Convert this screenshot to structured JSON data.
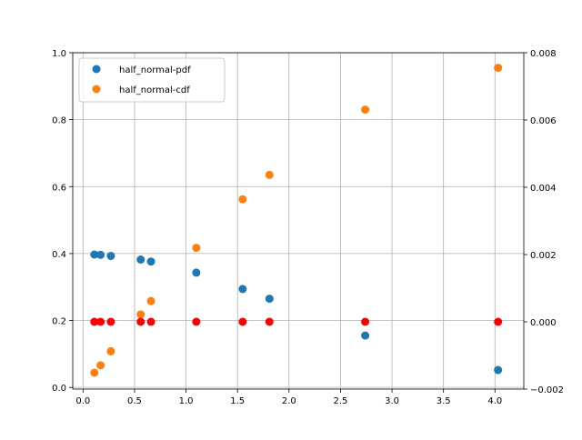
{
  "chart_data": {
    "type": "scatter",
    "title": "",
    "xlabel": "",
    "ylabel": "",
    "y2label": "",
    "xlim": [
      -0.1,
      4.28
    ],
    "ylim": [
      -0.005,
      1.0
    ],
    "y2lim": [
      -0.002,
      0.008
    ],
    "grid": true,
    "legend_position": "top-left",
    "x_ticks": [
      0.0,
      0.5,
      1.0,
      1.5,
      2.0,
      2.5,
      3.0,
      3.5,
      4.0
    ],
    "x_tick_labels": [
      "0.0",
      "0.5",
      "1.0",
      "1.5",
      "2.0",
      "2.5",
      "3.0",
      "3.5",
      "4.0"
    ],
    "y_ticks": [
      0.0,
      0.2,
      0.4,
      0.6,
      0.8,
      1.0
    ],
    "y_tick_labels": [
      "0.0",
      "0.2",
      "0.4",
      "0.6",
      "0.8",
      "1.0"
    ],
    "y2_ticks": [
      -0.002,
      0.0,
      0.002,
      0.004,
      0.006,
      0.008
    ],
    "y2_tick_labels": [
      "−0.002",
      "0.000",
      "0.002",
      "0.004",
      "0.006",
      "0.008"
    ],
    "x": [
      0.11,
      0.17,
      0.27,
      0.56,
      0.66,
      1.1,
      1.55,
      1.81,
      2.74,
      4.03
    ],
    "series": [
      {
        "name": "half_normal-pdf",
        "axis": "left",
        "color": "#1f77b4",
        "values": [
          0.397,
          0.396,
          0.393,
          0.382,
          0.376,
          0.343,
          0.294,
          0.265,
          0.155,
          0.052
        ]
      },
      {
        "name": "half_normal-cdf",
        "axis": "left",
        "color": "#ff7f0e",
        "values": [
          0.044,
          0.066,
          0.108,
          0.218,
          0.258,
          0.417,
          0.562,
          0.635,
          0.83,
          0.955
        ]
      },
      {
        "axis": "right",
        "color": "#ff0000",
        "values": [
          0.0,
          0.0,
          0.0,
          0.0,
          0.0,
          0.0,
          0.0,
          0.0,
          0.0,
          0.0
        ]
      }
    ]
  }
}
